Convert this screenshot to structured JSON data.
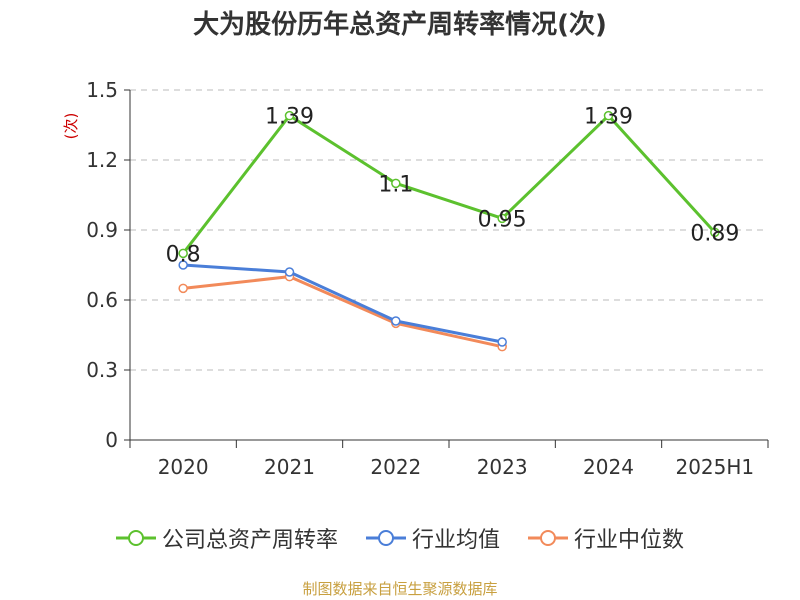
{
  "chart_data": {
    "type": "line",
    "title": "大为股份历年总资产周转率情况(次)",
    "ylabel": "(次)",
    "xlabel": "",
    "categories": [
      "2020",
      "2021",
      "2022",
      "2023",
      "2024",
      "2025H1"
    ],
    "ylim": [
      0,
      1.5
    ],
    "yticks": [
      "0",
      "0.3",
      "0.6",
      "0.9",
      "1.2",
      "1.5"
    ],
    "grid": true,
    "legend_position": "bottom",
    "series": [
      {
        "name": "公司总资产周转率",
        "color": "#5cc12e",
        "values": [
          0.8,
          1.39,
          1.1,
          0.95,
          1.39,
          0.89
        ],
        "labels": [
          "0.8",
          "1.39",
          "1.1",
          "0.95",
          "1.39",
          "0.89"
        ]
      },
      {
        "name": "行业均值",
        "color": "#4a7ed8",
        "values": [
          0.75,
          0.72,
          0.51,
          0.42,
          null,
          null
        ]
      },
      {
        "name": "行业中位数",
        "color": "#f28a5a",
        "values": [
          0.65,
          0.7,
          0.5,
          0.4,
          null,
          null
        ]
      }
    ]
  },
  "source": "制图数据来自恒生聚源数据库"
}
